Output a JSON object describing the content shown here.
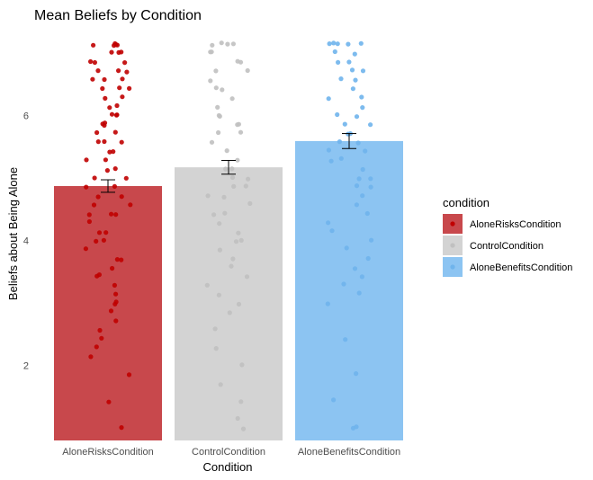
{
  "chart_data": {
    "type": "bar",
    "title": "Mean Beliefs by Condition",
    "xlabel": "Condition",
    "ylabel": "Beliefs about Being Alone",
    "categories": [
      "AloneRisksCondition",
      "ControlCondition",
      "AloneBenefitsCondition"
    ],
    "values": [
      4.87,
      5.17,
      5.59
    ],
    "error": [
      0.1,
      0.11,
      0.12
    ],
    "ylim": [
      0.8,
      7.3
    ],
    "yticks": [
      "2",
      "4",
      "6"
    ],
    "grid": false,
    "colors": [
      "#c8484c",
      "#d3d3d3",
      "#8cc4f2"
    ],
    "point_colors": [
      "#c00000",
      "#c0c0c0",
      "#6fb4ec"
    ],
    "legend": {
      "title": "condition",
      "placement": "right",
      "entries": [
        "AloneRisksCondition",
        "ControlCondition",
        "AloneBenefitsCondition"
      ]
    },
    "jitter_points": [
      [
        7.14,
        7.14,
        7.14,
        7.14,
        7.14,
        7.0,
        7.0,
        7.0,
        6.86,
        6.86,
        6.86,
        6.71,
        6.71,
        6.71,
        6.57,
        6.57,
        6.57,
        6.43,
        6.43,
        6.43,
        6.29,
        6.29,
        6.14,
        6.14,
        6.0,
        6.0,
        6.0,
        5.86,
        5.86,
        5.86,
        5.71,
        5.71,
        5.57,
        5.57,
        5.57,
        5.43,
        5.43,
        5.29,
        5.29,
        5.14,
        5.14,
        5.0,
        5.0,
        4.86,
        4.86,
        4.71,
        4.71,
        4.57,
        4.57,
        4.43,
        4.43,
        4.43,
        4.29,
        4.14,
        4.14,
        4.0,
        4.0,
        3.86,
        3.71,
        3.71,
        3.57,
        3.43,
        3.43,
        3.29,
        3.14,
        3.0,
        3.0,
        2.86,
        2.71,
        2.57,
        2.43,
        2.29,
        2.14,
        1.86,
        1.43,
        1.0
      ],
      [
        7.14,
        7.14,
        7.14,
        7.14,
        7.0,
        7.0,
        6.86,
        6.86,
        6.71,
        6.71,
        6.57,
        6.43,
        6.43,
        6.29,
        6.14,
        6.0,
        6.0,
        5.86,
        5.86,
        5.71,
        5.71,
        5.57,
        5.43,
        5.29,
        5.14,
        5.14,
        5.0,
        5.0,
        4.86,
        4.86,
        4.71,
        4.71,
        4.57,
        4.43,
        4.43,
        4.29,
        4.14,
        4.0,
        4.0,
        3.86,
        3.71,
        3.57,
        3.43,
        3.29,
        3.14,
        3.0,
        2.86,
        2.57,
        2.29,
        2.0,
        1.71,
        1.43,
        1.14,
        1.0
      ],
      [
        7.14,
        7.14,
        7.14,
        7.14,
        7.14,
        7.0,
        7.0,
        6.86,
        6.86,
        6.71,
        6.71,
        6.57,
        6.57,
        6.43,
        6.29,
        6.29,
        6.14,
        6.0,
        6.0,
        5.86,
        5.86,
        5.71,
        5.71,
        5.57,
        5.57,
        5.43,
        5.43,
        5.29,
        5.29,
        5.14,
        5.0,
        5.0,
        4.86,
        4.86,
        4.71,
        4.57,
        4.43,
        4.29,
        4.14,
        4.0,
        3.86,
        3.71,
        3.57,
        3.43,
        3.29,
        3.14,
        3.0,
        2.43,
        1.86,
        1.43,
        1.0,
        1.0
      ]
    ]
  }
}
